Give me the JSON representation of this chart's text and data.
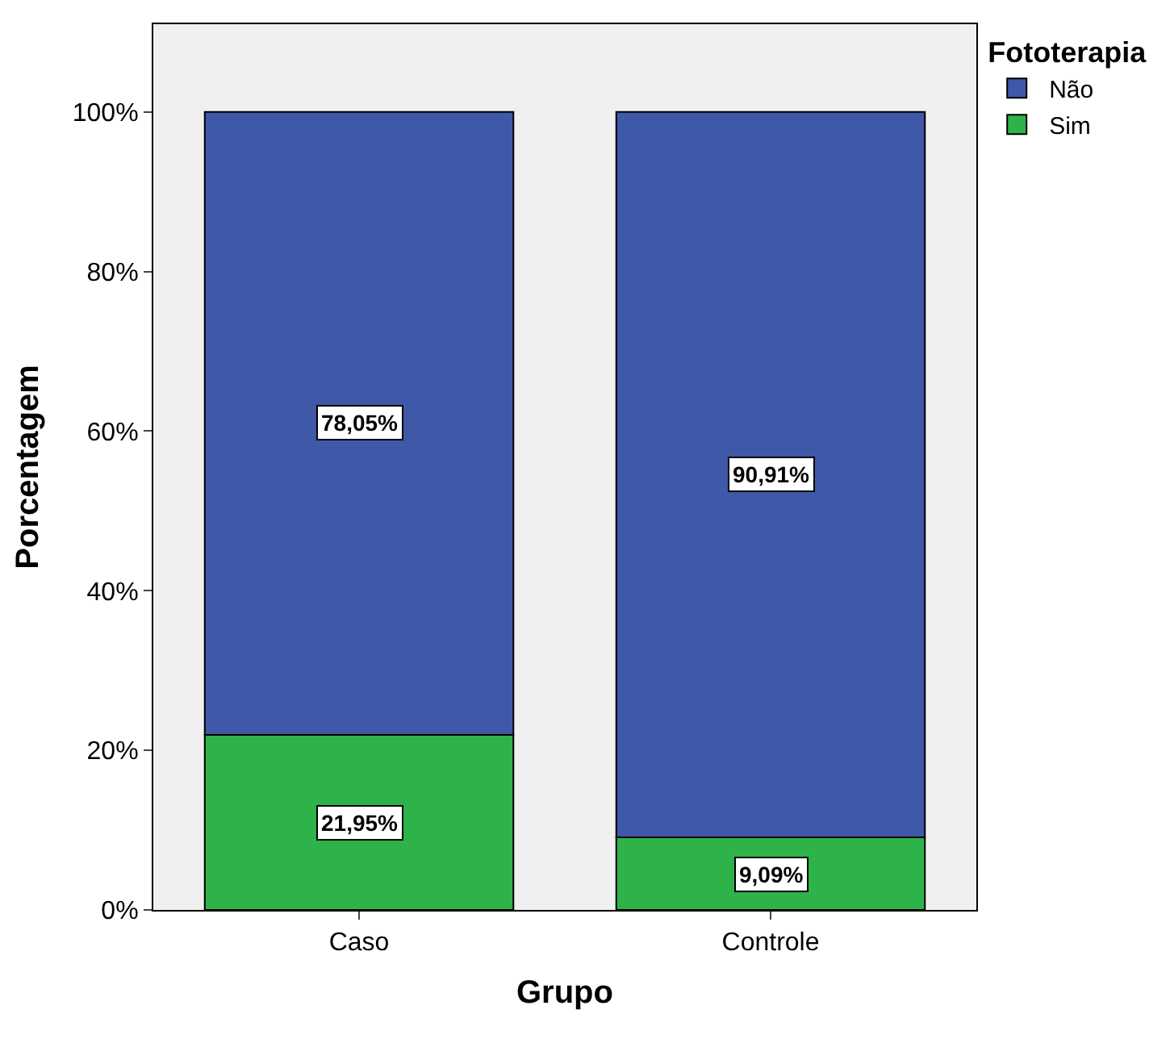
{
  "chart_data": {
    "type": "bar",
    "stacked": true,
    "xlabel": "Grupo",
    "ylabel": "Porcentagem",
    "legend_title": "Fototerapia",
    "legend": "top right",
    "grid": false,
    "categories": [
      "Caso",
      "Controle"
    ],
    "series": [
      {
        "name": "Sim",
        "color": "#2db34a",
        "values": [
          21.95,
          9.09
        ],
        "value_labels": [
          "21,95%",
          "9,09%"
        ]
      },
      {
        "name": "Não",
        "color": "#3f58a8",
        "values": [
          78.05,
          90.91
        ],
        "value_labels": [
          "78,05%",
          "90,91%"
        ]
      }
    ],
    "ylim": [
      0,
      111
    ],
    "yticks": [
      {
        "value": 0,
        "label": "0%"
      },
      {
        "value": 20,
        "label": "20%"
      },
      {
        "value": 40,
        "label": "40%"
      },
      {
        "value": 60,
        "label": "60%"
      },
      {
        "value": 80,
        "label": "80%"
      },
      {
        "value": 100,
        "label": "100%"
      }
    ]
  }
}
